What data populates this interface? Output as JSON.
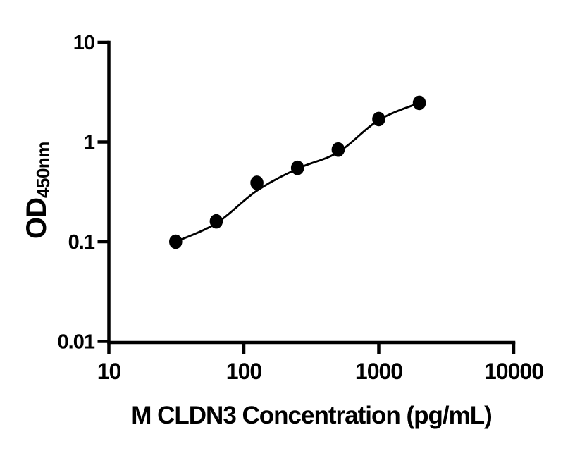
{
  "figure": {
    "background_color": "#ffffff",
    "foreground_color": "#000000"
  },
  "chart_data": {
    "type": "scatter",
    "title": "",
    "xlabel": "M CLDN3 Concentration (pg/mL)",
    "ylabel": "OD",
    "ylabel_subscript": "450nm",
    "x_scale": "log",
    "y_scale": "log",
    "xlim": [
      10,
      10000
    ],
    "ylim": [
      0.01,
      10
    ],
    "x_ticks": [
      10,
      100,
      1000,
      10000
    ],
    "x_tick_labels": [
      "10",
      "100",
      "1000",
      "10000"
    ],
    "y_ticks": [
      10,
      1,
      0.1,
      0.01
    ],
    "y_tick_labels": [
      "10",
      "1",
      "0.1",
      "0.01"
    ],
    "grid": false,
    "legend": false,
    "marker_color": "#000000",
    "line_color": "#000000",
    "series": [
      {
        "name": "standard-points",
        "kind": "scatter",
        "x": [
          31.25,
          62.5,
          125,
          250,
          500,
          1000,
          2000
        ],
        "y": [
          0.1,
          0.16,
          0.39,
          0.55,
          0.84,
          1.7,
          2.47
        ]
      },
      {
        "name": "fit-line",
        "kind": "line",
        "x": [
          31.25,
          62.5,
          125,
          250,
          500,
          1000,
          2000
        ],
        "y": [
          0.1,
          0.153,
          0.325,
          0.54,
          0.79,
          1.66,
          2.47
        ]
      }
    ]
  }
}
